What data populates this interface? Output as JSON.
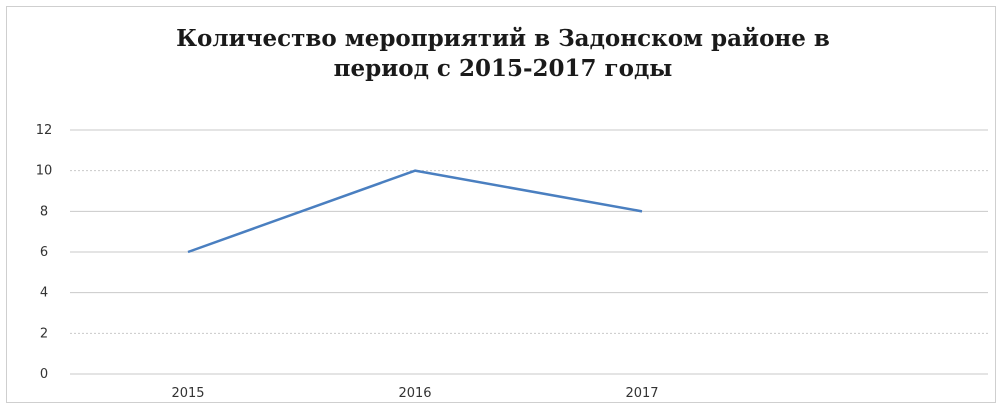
{
  "chart_data": {
    "type": "line",
    "title": "Количество мероприятий в Задонском районе в период с 2015-2017 годы",
    "title_lines": [
      "Количество мероприятий в Задонском районе в",
      "период с 2015-2017 годы"
    ],
    "categories": [
      "2015",
      "2016",
      "2017"
    ],
    "series": [
      {
        "values": [
          6,
          10,
          8
        ],
        "color": "#4a7fc0"
      }
    ],
    "y_ticks": [
      "0",
      "2",
      "4",
      "6",
      "8",
      "10",
      "12"
    ],
    "ylim": [
      0,
      12
    ],
    "grid": true,
    "legend": "none"
  }
}
